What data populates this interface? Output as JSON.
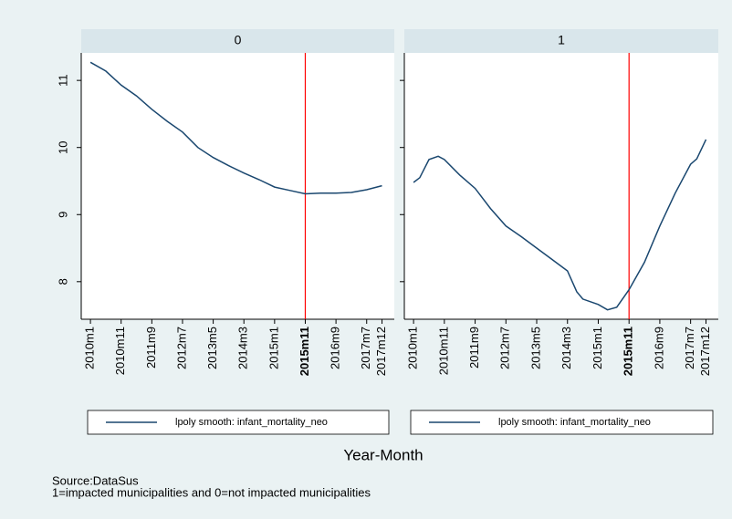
{
  "chart_data": [
    {
      "type": "line",
      "title": "0",
      "x": [
        0,
        5,
        10,
        15,
        20,
        25,
        30,
        35,
        40,
        45,
        50,
        55,
        60,
        65,
        70,
        75,
        80,
        85,
        90,
        95
      ],
      "series": [
        {
          "name": "lpoly smooth: infant_mortality_neo",
          "color": "#1a476f",
          "values": [
            11.27,
            11.14,
            10.93,
            10.77,
            10.57,
            10.39,
            10.23,
            10.0,
            9.85,
            9.73,
            9.62,
            9.52,
            9.41,
            9.36,
            9.31,
            9.32,
            9.32,
            9.33,
            9.37,
            9.43
          ]
        }
      ],
      "xlim": [
        -3,
        99
      ],
      "ylim": [
        7.44,
        11.41
      ],
      "xticks": [
        {
          "value": 0,
          "label": "2010m1"
        },
        {
          "value": 10,
          "label": "2010m11"
        },
        {
          "value": 20,
          "label": "2011m9"
        },
        {
          "value": 30,
          "label": "2012m7"
        },
        {
          "value": 40,
          "label": "2013m5"
        },
        {
          "value": 50,
          "label": "2014m3"
        },
        {
          "value": 60,
          "label": "2015m1"
        },
        {
          "value": 70,
          "label": "2015m11",
          "bold": true
        },
        {
          "value": 80,
          "label": "2016m9"
        },
        {
          "value": 90,
          "label": "2017m7"
        },
        {
          "value": 95,
          "label": "2017m12"
        }
      ],
      "yticks": [
        8,
        9,
        10,
        11
      ],
      "xline": 70,
      "xline_color": "#ff0000"
    },
    {
      "type": "line",
      "title": "1",
      "x": [
        0,
        2,
        5,
        8,
        10,
        15,
        20,
        25,
        30,
        35,
        40,
        45,
        50,
        53,
        55,
        60,
        63,
        66,
        70,
        75,
        80,
        85,
        90,
        92,
        95
      ],
      "series": [
        {
          "name": "lpoly smooth: infant_mortality_neo",
          "color": "#1a476f",
          "values": [
            9.48,
            9.55,
            9.82,
            9.87,
            9.82,
            9.59,
            9.39,
            9.09,
            8.83,
            8.67,
            8.5,
            8.33,
            8.16,
            7.85,
            7.74,
            7.66,
            7.58,
            7.62,
            7.88,
            8.29,
            8.83,
            9.32,
            9.75,
            9.83,
            10.12
          ]
        }
      ],
      "xlim": [
        -3,
        99
      ],
      "ylim": [
        7.44,
        11.41
      ],
      "xticks": [
        {
          "value": 0,
          "label": "2010m1"
        },
        {
          "value": 10,
          "label": "2010m11"
        },
        {
          "value": 20,
          "label": "2011m9"
        },
        {
          "value": 30,
          "label": "2012m7"
        },
        {
          "value": 40,
          "label": "2013m5"
        },
        {
          "value": 50,
          "label": "2014m3"
        },
        {
          "value": 60,
          "label": "2015m1"
        },
        {
          "value": 70,
          "label": "2015m11",
          "bold": true
        },
        {
          "value": 80,
          "label": "2016m9"
        },
        {
          "value": 90,
          "label": "2017m7"
        },
        {
          "value": 95,
          "label": "2017m12"
        }
      ],
      "xline": 70,
      "xline_color": "#ff0000"
    }
  ],
  "xlabel": "Year-Month",
  "notes": [
    "Source:DataSus",
    "1=impacted municipalities and 0=not impacted municipalities"
  ]
}
